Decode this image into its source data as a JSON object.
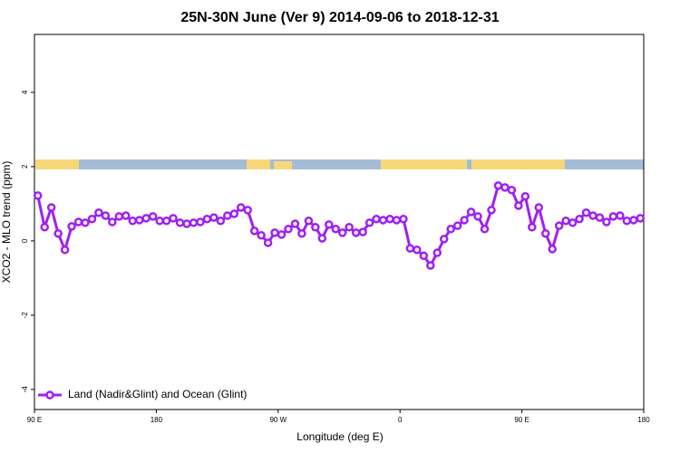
{
  "chart_data": {
    "type": "line",
    "title": "25N-30N June (Ver 9)   2014-09-06 to 2018-12-31",
    "xlabel": "Longitude (deg E)",
    "ylabel": "XCO2 - MLO trend (ppm)",
    "x": [
      92.5,
      97.5,
      102.5,
      107.5,
      112.5,
      117.5,
      122.5,
      127.5,
      132.5,
      137.5,
      142.5,
      147.5,
      152.5,
      157.5,
      162.5,
      167.5,
      172.5,
      177.5,
      182.5,
      187.5,
      192.5,
      197.5,
      202.5,
      207.5,
      212.5,
      217.5,
      222.5,
      227.5,
      232.5,
      237.5,
      242.5,
      247.5,
      252.5,
      257.5,
      262.5,
      267.5,
      272.5,
      277.5,
      282.5,
      287.5,
      292.5,
      297.5,
      302.5,
      307.5,
      312.5,
      317.5,
      322.5,
      327.5,
      332.5,
      337.5,
      342.5,
      347.5,
      352.5,
      357.5,
      362.5,
      367.5,
      372.5,
      377.5,
      382.5,
      387.5,
      392.5,
      397.5,
      402.5,
      407.5,
      412.5,
      417.5,
      422.5,
      427.5,
      432.5,
      437.5,
      442.5,
      447.5,
      452.5,
      457.5,
      462.5,
      467.5,
      472.5,
      477.5,
      482.5,
      487.5,
      492.5,
      497.5,
      502.5,
      507.5,
      512.5,
      517.5,
      522.5,
      527.5,
      532.5,
      537.5
    ],
    "series": [
      {
        "name": "Land (Nadir&Glint) and Ocean (Glint)",
        "color": "#a020f0",
        "values": [
          1.22,
          0.37,
          0.9,
          0.2,
          -0.24,
          0.39,
          0.51,
          0.49,
          0.59,
          0.76,
          0.68,
          0.51,
          0.66,
          0.68,
          0.54,
          0.56,
          0.61,
          0.66,
          0.54,
          0.54,
          0.61,
          0.49,
          0.46,
          0.49,
          0.51,
          0.59,
          0.63,
          0.54,
          0.68,
          0.73,
          0.9,
          0.83,
          0.27,
          0.15,
          -0.05,
          0.22,
          0.17,
          0.32,
          0.46,
          0.2,
          0.54,
          0.37,
          0.07,
          0.44,
          0.32,
          0.22,
          0.37,
          0.22,
          0.24,
          0.49,
          0.59,
          0.56,
          0.59,
          0.56,
          0.59,
          -0.2,
          -0.24,
          -0.4,
          -0.66,
          -0.32,
          0.05,
          0.32,
          0.41,
          0.56,
          0.78,
          0.66,
          0.32,
          0.83,
          1.49,
          1.44,
          1.37,
          0.95,
          1.2,
          0.37,
          0.9,
          0.2,
          -0.22,
          0.41,
          0.54,
          0.49,
          0.59,
          0.76,
          0.68,
          0.63,
          0.51,
          0.66,
          0.68,
          0.54,
          0.56,
          0.61
        ]
      }
    ],
    "xlim": [
      90,
      540
    ],
    "xticks": [
      {
        "value": 90,
        "label": "90 E"
      },
      {
        "value": 180,
        "label": "180"
      },
      {
        "value": 270,
        "label": "90 W"
      },
      {
        "value": 360,
        "label": "0"
      },
      {
        "value": 450,
        "label": "90 E"
      },
      {
        "value": 540,
        "label": "180"
      }
    ],
    "ylim": [
      -4.54,
      5.56
    ],
    "yticks": [
      -4,
      -2,
      0,
      2,
      4
    ],
    "legend": "bottom-left"
  }
}
